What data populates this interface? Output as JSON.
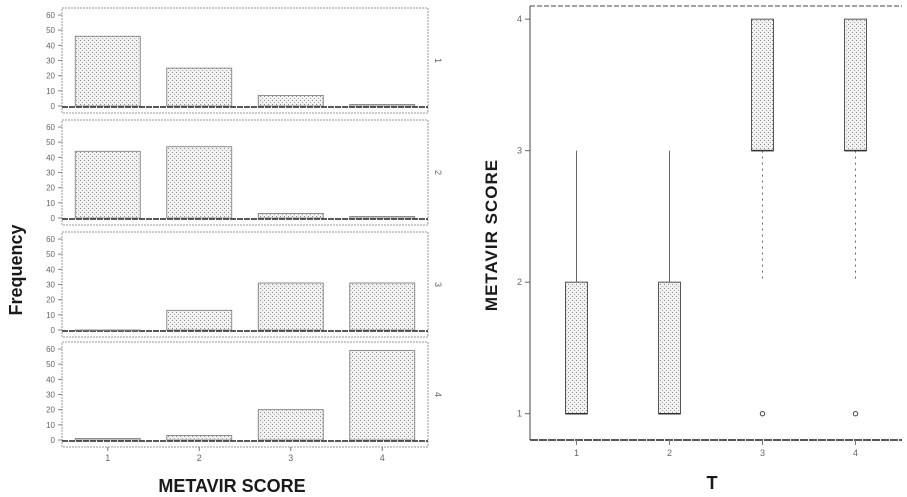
{
  "chart_data": [
    {
      "type": "bar",
      "layout": "stacked-panels",
      "xlabel": "METAVIR SCORE",
      "ylabel": "Frequency",
      "categories": [
        "1",
        "2",
        "3",
        "4"
      ],
      "ylim": [
        0,
        60
      ],
      "yticks": [
        "0",
        "10",
        "20",
        "30",
        "40",
        "50",
        "60"
      ],
      "panels": [
        {
          "label": "1",
          "values": [
            46,
            25,
            7,
            1
          ]
        },
        {
          "label": "2",
          "values": [
            44,
            47,
            3,
            1
          ]
        },
        {
          "label": "3",
          "values": [
            0,
            13,
            31,
            31
          ]
        },
        {
          "label": "4",
          "values": [
            1,
            3,
            20,
            59
          ]
        }
      ]
    },
    {
      "type": "box",
      "xlabel": "T",
      "ylabel": "METAVIR SCORE",
      "categories": [
        "1",
        "2",
        "3",
        "4"
      ],
      "ylim": [
        0.8,
        4.1
      ],
      "yticks": [
        "1",
        "2",
        "3",
        "4"
      ],
      "boxes": [
        {
          "label": "1",
          "whisker_low": 1,
          "q1": 1,
          "median": 1,
          "q3": 2,
          "whisker_high": 3
        },
        {
          "label": "2",
          "whisker_low": 1,
          "q1": 1,
          "median": 1,
          "q3": 2,
          "whisker_high": 3
        },
        {
          "label": "3",
          "whisker_low": 2,
          "q1": 3,
          "median": 3,
          "q3": 4,
          "whisker_high": 4
        },
        {
          "label": "4",
          "whisker_low": 2,
          "q1": 3,
          "median": 3,
          "q3": 4,
          "whisker_high": 4
        }
      ],
      "outliers": [
        {
          "category": "3",
          "value": 1
        },
        {
          "category": "4",
          "value": 1
        }
      ]
    }
  ]
}
